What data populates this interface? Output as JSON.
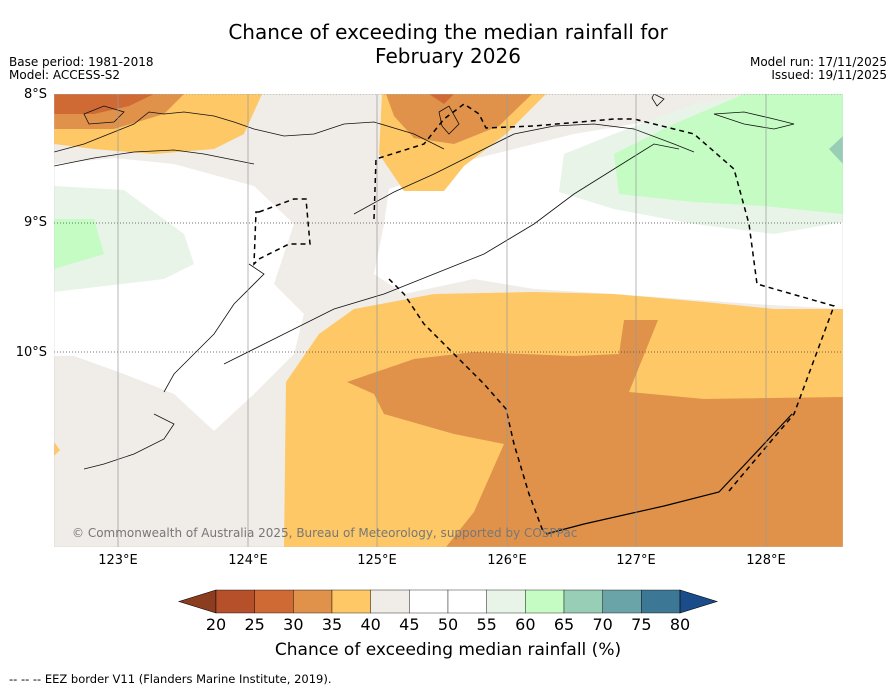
{
  "title_line1": "Chance of exceeding the median rainfall for",
  "title_line2": "February 2026",
  "base_period": "Base period: 1981-2018",
  "model": "Model: ACCESS-S2",
  "model_run": "Model run: 17/11/2025",
  "issued": "Issued: 19/11/2025",
  "lat_labels": [
    "8°S",
    "9°S",
    "10°S"
  ],
  "lon_labels": [
    "123°E",
    "124°E",
    "125°E",
    "126°E",
    "127°E",
    "128°E"
  ],
  "copyright": "© Commonwealth of Australia 2025, Bureau of Meteorology, supported by COSPPac",
  "colorbar": {
    "ticks": [
      "20",
      "25",
      "30",
      "35",
      "40",
      "45",
      "50",
      "55",
      "60",
      "65",
      "70",
      "75",
      "80"
    ],
    "title": "Chance of exceeding median rainfall (%)",
    "colors": [
      "#8c3d20",
      "#b5502a",
      "#cf6a35",
      "#e0924a",
      "#fdc865",
      "#f0ece7",
      "#ffffff",
      "#ffffff",
      "#e7f4e7",
      "#c4fcc4",
      "#98ceb6",
      "#6aa3a8",
      "#3c7896",
      "#1a4c8a"
    ]
  },
  "footer": "-- -- -- EEZ border V11 (Flanders Marine Institute, 2019).",
  "map_colors": {
    "c30": "#e0924a",
    "c25": "#cf6a35",
    "c35": "#fdc865",
    "c40": "#f0ece7",
    "c50": "#ffffff",
    "c55": "#e7f4e7",
    "c60": "#c4fcc4",
    "c65": "#98ceb6"
  }
}
